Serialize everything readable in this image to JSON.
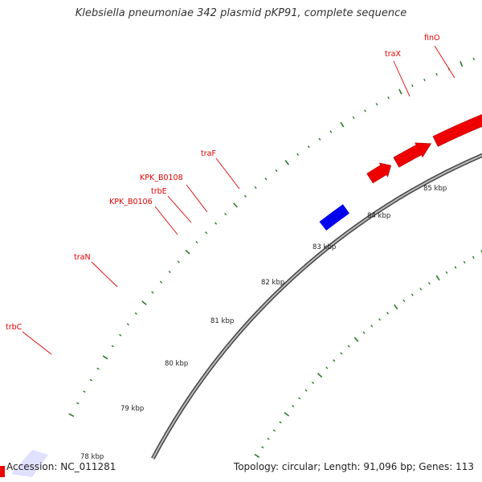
{
  "title": "Klebsiella pneumoniae 342 plasmid pKP91, complete sequence",
  "accession": "Accession: NC_011281",
  "stats": "Topology: circular; Length: 91,096 bp; Genes: 113",
  "colors": {
    "forward_gene": "#ee0000",
    "reverse_gene": "#0000ee",
    "backbone": "#888888",
    "tick": "#2a7a2a",
    "label": "#e00000"
  },
  "genes": [
    {
      "name": "trbC",
      "strand": "forward"
    },
    {
      "name": "traN",
      "strand": "forward"
    },
    {
      "name": "KPK_B0106",
      "strand": "forward"
    },
    {
      "name": "trbE",
      "strand": "forward"
    },
    {
      "name": "KPK_B0108",
      "strand": "forward"
    },
    {
      "name": "traF",
      "strand": "forward"
    },
    {
      "name": "traX",
      "strand": "forward"
    },
    {
      "name": "finO",
      "strand": "forward"
    }
  ],
  "scale_ticks": [
    "78 kbp",
    "79 kbp",
    "80 kbp",
    "81 kbp",
    "82 kbp",
    "83 kbp",
    "84 kbp",
    "85 kbp"
  ]
}
